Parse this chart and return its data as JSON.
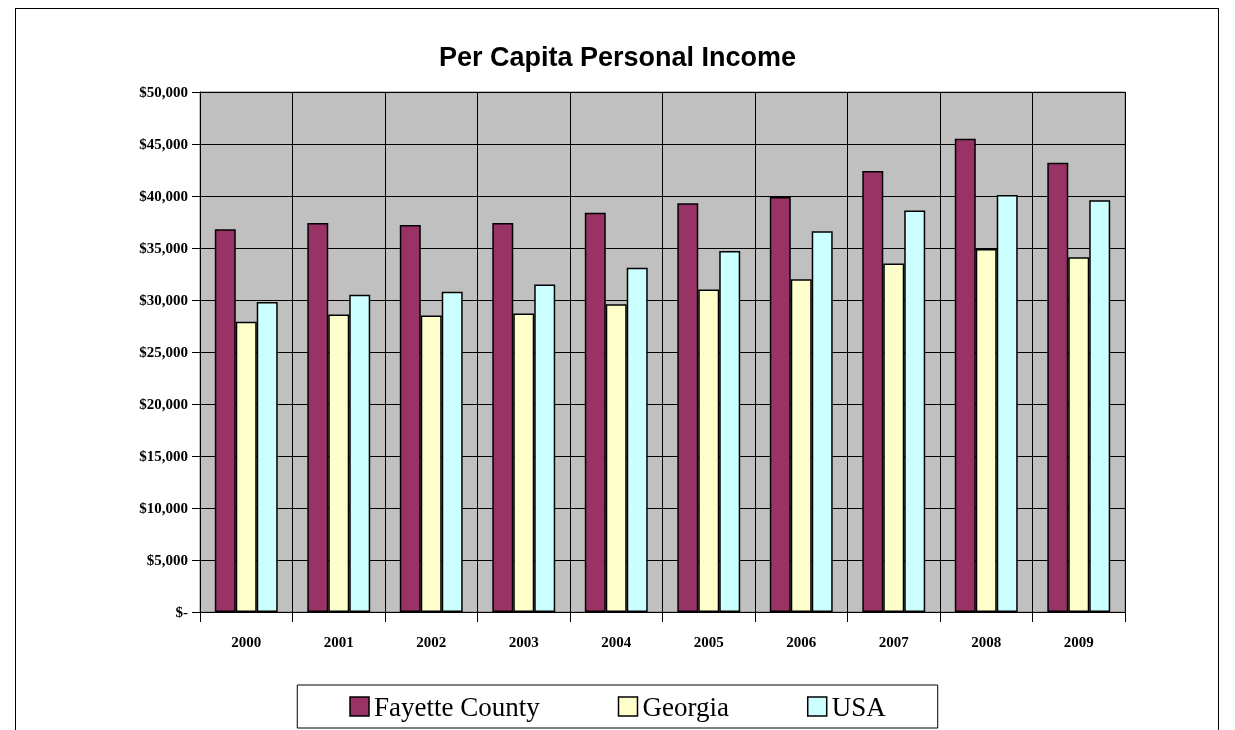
{
  "chart_data": {
    "type": "bar",
    "title": "Per Capita Personal Income",
    "categories": [
      "2000",
      "2001",
      "2002",
      "2003",
      "2004",
      "2005",
      "2006",
      "2007",
      "2008",
      "2009"
    ],
    "series": [
      {
        "name": "Fayette County",
        "color": "#993366",
        "values": [
          36800,
          37400,
          37200,
          37400,
          38400,
          39300,
          39900,
          42400,
          45500,
          43200
        ]
      },
      {
        "name": "Georgia",
        "color": "#ffffcc",
        "values": [
          27900,
          28600,
          28500,
          28700,
          29600,
          31000,
          32000,
          33500,
          34900,
          34100
        ]
      },
      {
        "name": "USA",
        "color": "#ccffff",
        "values": [
          29800,
          30500,
          30800,
          31500,
          33100,
          34700,
          36600,
          38600,
          40100,
          39600
        ]
      }
    ],
    "ylim": [
      0,
      50000
    ],
    "yticks": [
      {
        "value": 0,
        "label": "$-"
      },
      {
        "value": 5000,
        "label": "$5,000"
      },
      {
        "value": 10000,
        "label": "$10,000"
      },
      {
        "value": 15000,
        "label": "$15,000"
      },
      {
        "value": 20000,
        "label": "$20,000"
      },
      {
        "value": 25000,
        "label": "$25,000"
      },
      {
        "value": 30000,
        "label": "$30,000"
      },
      {
        "value": 35000,
        "label": "$35,000"
      },
      {
        "value": 40000,
        "label": "$40,000"
      },
      {
        "value": 45000,
        "label": "$45,000"
      },
      {
        "value": 50000,
        "label": "$50,000"
      }
    ],
    "grid": true,
    "legend": "bottom"
  }
}
